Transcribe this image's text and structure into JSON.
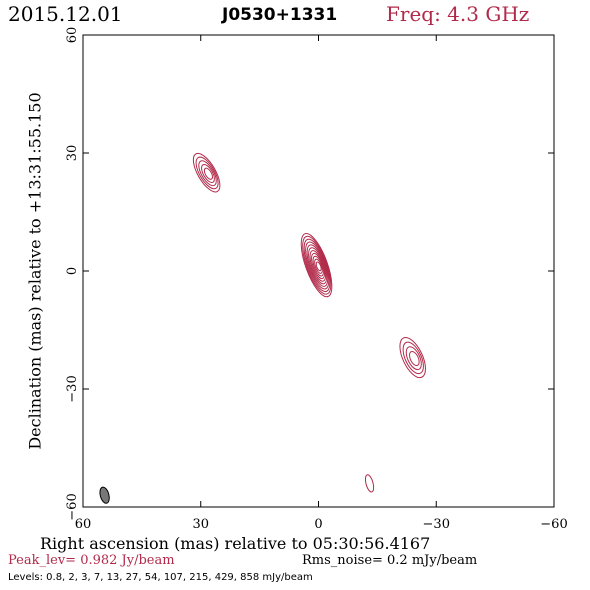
{
  "header": {
    "date": "2015.12.01",
    "source": "J0530+1331",
    "frequency": "Freq: 4.3 GHz"
  },
  "colors": {
    "contour": "#b22a4a",
    "frequency_text": "#b22a4a",
    "beam_fill": "#777777"
  },
  "chart_data": {
    "type": "contour",
    "xlabel": "Right ascension (mas) relative to 05:30:56.4167",
    "ylabel": "Declination (mas) relative to +13:31:55.150",
    "xlim": [
      60,
      -60
    ],
    "ylim": [
      -60,
      60
    ],
    "x_ticks": [
      60,
      30,
      0,
      -30,
      -60
    ],
    "y_ticks": [
      60,
      30,
      0,
      -30,
      -60
    ],
    "components": [
      {
        "x": 0.5,
        "y": 1.5,
        "major": 17,
        "minor": 5.5,
        "pa": 160,
        "contours": 11
      },
      {
        "x": 28.5,
        "y": 25,
        "major": 11,
        "minor": 4.5,
        "pa": 150,
        "contours": 5
      },
      {
        "x": -24,
        "y": -22,
        "major": 11,
        "minor": 5,
        "pa": 155,
        "contours": 4
      },
      {
        "x": -13,
        "y": -54,
        "major": 4.5,
        "minor": 1.8,
        "pa": 165,
        "contours": 1
      }
    ],
    "beam": {
      "x": 54.5,
      "y": -57,
      "major": 4.2,
      "minor": 2.2,
      "pa": 165
    }
  },
  "footer": {
    "peak": "Peak_lev=  0.982 Jy/beam",
    "rms": "Rms_noise=  0.2 mJy/beam",
    "levels": "Levels: 0.8,   2,   3,   7,   13,   27,   54,  107,  215,  429,  858 mJy/beam"
  }
}
